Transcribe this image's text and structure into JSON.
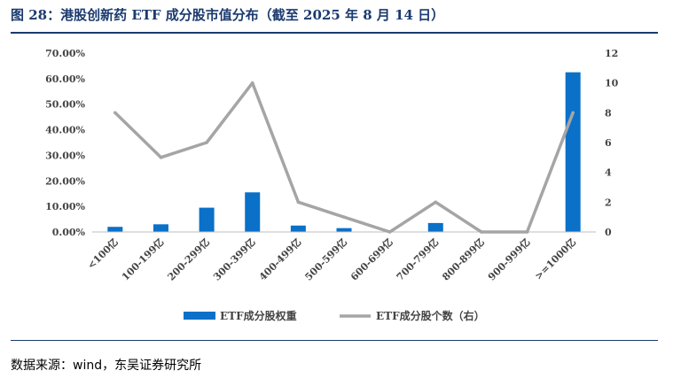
{
  "figure": {
    "title": "图 28：港股创新药 ETF 成分股市值分布（截至 2025 年 8 月 14 日）",
    "source": "数据来源：wind，东吴证券研究所"
  },
  "chart_data": {
    "type": "bar",
    "title": "",
    "categories": [
      "<100亿",
      "100-199亿",
      "200-299亿",
      "300-399亿",
      "400-499亿",
      "500-599亿",
      "600-699亿",
      "700-799亿",
      "800-899亿",
      "900-999亿",
      ">=1000亿"
    ],
    "series": [
      {
        "name": "ETF成分股权重",
        "type": "bar",
        "axis": "left",
        "color": "#0a70c8",
        "values": [
          2.0,
          3.0,
          9.5,
          15.5,
          2.5,
          1.5,
          0.0,
          3.5,
          0.0,
          0.0,
          62.5
        ]
      },
      {
        "name": "ETF成分股个数（右）",
        "type": "line",
        "axis": "right",
        "color": "#a5a5a5",
        "values": [
          8,
          5,
          6,
          10,
          2,
          1,
          0,
          2,
          0,
          0,
          8
        ]
      }
    ],
    "y_left": {
      "min": 0,
      "max": 70,
      "step": 10,
      "tick_labels": [
        "0.00%",
        "10.00%",
        "20.00%",
        "30.00%",
        "40.00%",
        "50.00%",
        "60.00%",
        "70.00%"
      ]
    },
    "y_right": {
      "min": 0,
      "max": 12,
      "step": 2,
      "tick_labels": [
        "0",
        "2",
        "4",
        "6",
        "8",
        "10",
        "12"
      ]
    },
    "grid": false,
    "legend": "bottom"
  }
}
